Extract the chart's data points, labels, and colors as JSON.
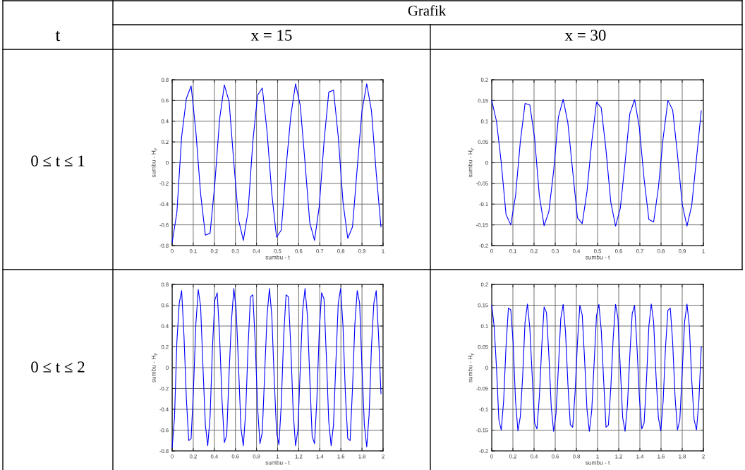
{
  "chart_data": [
    {
      "type": "other",
      "annotations": [
        "t",
        "Grafik",
        "x = 15",
        "x = 30",
        "0 ≤ t ≤ 1",
        "0 ≤ t ≤ 2"
      ]
    },
    {
      "type": "line",
      "xlabel": "sumbu - t",
      "ylabel": "sumbu - H$_{y}$",
      "xlim": [
        0,
        1
      ],
      "ylim": [
        -0.8,
        0.8
      ],
      "xticks": [
        0,
        0.1,
        0.2,
        0.3,
        0.4,
        0.5,
        0.6,
        0.7,
        0.8,
        0.9,
        1
      ],
      "yticks": [
        -0.8,
        -0.6,
        -0.4,
        -0.2,
        0,
        0.2,
        0.4,
        0.6,
        0.8
      ],
      "grid": true,
      "series": [
        {
          "color": "#0000ff",
          "x": [
            0,
            0.0225,
            0.045,
            0.0675,
            0.09,
            0.1125,
            0.135,
            0.1575,
            0.18,
            0.2025,
            0.225,
            0.2475,
            0.27,
            0.2925,
            0.315,
            0.3375,
            0.36,
            0.3825,
            0.405,
            0.4275,
            0.45,
            0.4725,
            0.495,
            0.5175,
            0.54,
            0.5625,
            0.585,
            0.6075,
            0.63,
            0.6525,
            0.675,
            0.6975,
            0.72,
            0.7425,
            0.765,
            0.7875,
            0.81,
            0.8325,
            0.855,
            0.8775,
            0.9,
            0.9225,
            0.945,
            0.9675,
            0.99
          ],
          "values": [
            -0.77,
            -0.48,
            0.25,
            0.62,
            0.74,
            0.3,
            -0.3,
            -0.7,
            -0.68,
            -0.2,
            0.42,
            0.75,
            0.59,
            0.0,
            -0.55,
            -0.75,
            -0.47,
            0.2,
            0.65,
            0.72,
            0.3,
            -0.3,
            -0.72,
            -0.65,
            -0.05,
            0.45,
            0.76,
            0.55,
            0.0,
            -0.58,
            -0.75,
            -0.42,
            0.2,
            0.68,
            0.7,
            0.25,
            -0.38,
            -0.73,
            -0.62,
            -0.05,
            0.5,
            0.76,
            0.5,
            -0.1,
            -0.62
          ]
        }
      ]
    },
    {
      "type": "line",
      "xlabel": "sumbu - t",
      "ylabel": "sumbu - H$_{y}$",
      "xlim": [
        0,
        1
      ],
      "ylim": [
        -0.2,
        0.2
      ],
      "xticks": [
        0,
        0.1,
        0.2,
        0.3,
        0.4,
        0.5,
        0.6,
        0.7,
        0.8,
        0.9,
        1
      ],
      "yticks": [
        -0.2,
        -0.15,
        -0.1,
        -0.05,
        0,
        0.05,
        0.1,
        0.15,
        0.2
      ],
      "grid": true,
      "series": [
        {
          "color": "#0000ff",
          "x": [
            0,
            0.0225,
            0.045,
            0.0675,
            0.09,
            0.1125,
            0.135,
            0.1575,
            0.18,
            0.2025,
            0.225,
            0.2475,
            0.27,
            0.2925,
            0.315,
            0.3375,
            0.36,
            0.3825,
            0.405,
            0.4275,
            0.45,
            0.4725,
            0.495,
            0.5175,
            0.54,
            0.5625,
            0.585,
            0.6075,
            0.63,
            0.6525,
            0.675,
            0.6975,
            0.72,
            0.7425,
            0.765,
            0.7875,
            0.81,
            0.8325,
            0.855,
            0.8775,
            0.9,
            0.9225,
            0.945,
            0.9675,
            0.99
          ],
          "values": [
            0.15,
            0.1,
            0.0,
            -0.125,
            -0.15,
            -0.08,
            0.05,
            0.143,
            0.139,
            0.06,
            -0.08,
            -0.152,
            -0.118,
            -0.02,
            0.11,
            0.153,
            0.095,
            -0.02,
            -0.133,
            -0.147,
            -0.07,
            0.05,
            0.146,
            0.132,
            0.03,
            -0.095,
            -0.153,
            -0.11,
            0.0,
            0.118,
            0.152,
            0.085,
            -0.04,
            -0.137,
            -0.143,
            -0.06,
            0.06,
            0.15,
            0.127,
            0.02,
            -0.1,
            -0.153,
            -0.103,
            0.01,
            0.125
          ]
        }
      ]
    },
    {
      "type": "line",
      "xlabel": "sumbu - t",
      "ylabel": "sumbu - H$_{y}$",
      "xlim": [
        0,
        2
      ],
      "ylim": [
        -0.8,
        0.8
      ],
      "xticks": [
        0,
        0.2,
        0.4,
        0.6,
        0.8,
        1,
        1.2,
        1.4,
        1.6,
        1.8,
        2
      ],
      "yticks": [
        -0.8,
        -0.6,
        -0.4,
        -0.2,
        0,
        0.2,
        0.4,
        0.6,
        0.8
      ],
      "grid": true,
      "series": [
        {
          "color": "#0000ff",
          "x": [
            0,
            0.0225,
            0.045,
            0.0675,
            0.09,
            0.1125,
            0.135,
            0.1575,
            0.18,
            0.2025,
            0.225,
            0.2475,
            0.27,
            0.2925,
            0.315,
            0.3375,
            0.36,
            0.3825,
            0.405,
            0.4275,
            0.45,
            0.4725,
            0.495,
            0.5175,
            0.54,
            0.5625,
            0.585,
            0.6075,
            0.63,
            0.6525,
            0.675,
            0.6975,
            0.72,
            0.7425,
            0.765,
            0.7875,
            0.81,
            0.8325,
            0.855,
            0.8775,
            0.9,
            0.9225,
            0.945,
            0.9675,
            0.99,
            1.0125,
            1.035,
            1.0575,
            1.08,
            1.1025,
            1.125,
            1.1475,
            1.17,
            1.1925,
            1.215,
            1.2375,
            1.26,
            1.2825,
            1.305,
            1.3275,
            1.35,
            1.3725,
            1.395,
            1.4175,
            1.44,
            1.4625,
            1.485,
            1.5075,
            1.53,
            1.5525,
            1.575,
            1.5975,
            1.62,
            1.6425,
            1.665,
            1.6875,
            1.71,
            1.7325,
            1.755,
            1.7775,
            1.8,
            1.8225,
            1.845,
            1.8675,
            1.89,
            1.9125,
            1.935,
            1.9575,
            1.98
          ],
          "values": [
            -0.77,
            -0.48,
            0.25,
            0.62,
            0.74,
            0.3,
            -0.3,
            -0.7,
            -0.68,
            -0.2,
            0.42,
            0.75,
            0.59,
            0.0,
            -0.55,
            -0.75,
            -0.47,
            0.2,
            0.65,
            0.72,
            0.3,
            -0.3,
            -0.72,
            -0.65,
            -0.05,
            0.45,
            0.76,
            0.55,
            0.0,
            -0.58,
            -0.75,
            -0.42,
            0.2,
            0.68,
            0.7,
            0.25,
            -0.38,
            -0.73,
            -0.62,
            -0.05,
            0.5,
            0.76,
            0.5,
            -0.1,
            -0.62,
            -0.74,
            -0.35,
            0.3,
            0.7,
            0.68,
            0.2,
            -0.42,
            -0.75,
            -0.6,
            0.0,
            0.55,
            0.76,
            0.5,
            -0.1,
            -0.66,
            -0.73,
            -0.3,
            0.35,
            0.72,
            0.66,
            0.1,
            -0.52,
            -0.75,
            -0.55,
            0.05,
            0.62,
            0.76,
            0.4,
            -0.25,
            -0.68,
            -0.7,
            -0.2,
            0.42,
            0.74,
            0.62,
            0.0,
            -0.55,
            -0.76,
            -0.45,
            0.2,
            0.62,
            0.74,
            0.3,
            -0.25
          ]
        }
      ]
    },
    {
      "type": "line",
      "xlabel": "sumbu - t",
      "ylabel": "sumbu - H$_{y}$",
      "xlim": [
        0,
        2
      ],
      "ylim": [
        -0.2,
        0.2
      ],
      "xticks": [
        0,
        0.2,
        0.4,
        0.6,
        0.8,
        1,
        1.2,
        1.4,
        1.6,
        1.8,
        2
      ],
      "yticks": [
        -0.2,
        -0.15,
        -0.1,
        -0.05,
        0,
        0.05,
        0.1,
        0.15,
        0.2
      ],
      "grid": true,
      "series": [
        {
          "color": "#0000ff",
          "x": [
            0,
            0.0225,
            0.045,
            0.0675,
            0.09,
            0.1125,
            0.135,
            0.1575,
            0.18,
            0.2025,
            0.225,
            0.2475,
            0.27,
            0.2925,
            0.315,
            0.3375,
            0.36,
            0.3825,
            0.405,
            0.4275,
            0.45,
            0.4725,
            0.495,
            0.5175,
            0.54,
            0.5625,
            0.585,
            0.6075,
            0.63,
            0.6525,
            0.675,
            0.6975,
            0.72,
            0.7425,
            0.765,
            0.7875,
            0.81,
            0.8325,
            0.855,
            0.8775,
            0.9,
            0.9225,
            0.945,
            0.9675,
            0.99,
            1.0125,
            1.035,
            1.0575,
            1.08,
            1.1025,
            1.125,
            1.1475,
            1.17,
            1.1925,
            1.215,
            1.2375,
            1.26,
            1.2825,
            1.305,
            1.3275,
            1.35,
            1.3725,
            1.395,
            1.4175,
            1.44,
            1.4625,
            1.485,
            1.5075,
            1.53,
            1.5525,
            1.575,
            1.5975,
            1.62,
            1.6425,
            1.665,
            1.6875,
            1.71,
            1.7325,
            1.755,
            1.7775,
            1.8,
            1.8225,
            1.845,
            1.8675,
            1.89,
            1.9125,
            1.935,
            1.9575,
            1.98
          ],
          "values": [
            0.15,
            0.1,
            0.0,
            -0.125,
            -0.15,
            -0.08,
            0.05,
            0.143,
            0.139,
            0.06,
            -0.08,
            -0.152,
            -0.118,
            -0.02,
            0.11,
            0.153,
            0.095,
            -0.02,
            -0.133,
            -0.147,
            -0.07,
            0.05,
            0.146,
            0.132,
            0.03,
            -0.095,
            -0.153,
            -0.11,
            0.0,
            0.118,
            0.152,
            0.085,
            -0.04,
            -0.137,
            -0.143,
            -0.06,
            0.06,
            0.15,
            0.127,
            0.02,
            -0.1,
            -0.153,
            -0.103,
            0.01,
            0.125,
            0.152,
            0.09,
            -0.03,
            -0.143,
            -0.138,
            -0.05,
            0.07,
            0.152,
            0.12,
            0.0,
            -0.12,
            -0.153,
            -0.09,
            0.03,
            0.13,
            0.15,
            0.05,
            -0.07,
            -0.147,
            -0.133,
            -0.03,
            0.1,
            0.153,
            0.11,
            -0.02,
            -0.12,
            -0.152,
            -0.08,
            0.05,
            0.138,
            0.143,
            0.06,
            -0.07,
            -0.15,
            -0.125,
            -0.01,
            0.11,
            0.153,
            0.1,
            -0.03,
            -0.125,
            -0.15,
            -0.08,
            0.05
          ]
        }
      ]
    }
  ]
}
